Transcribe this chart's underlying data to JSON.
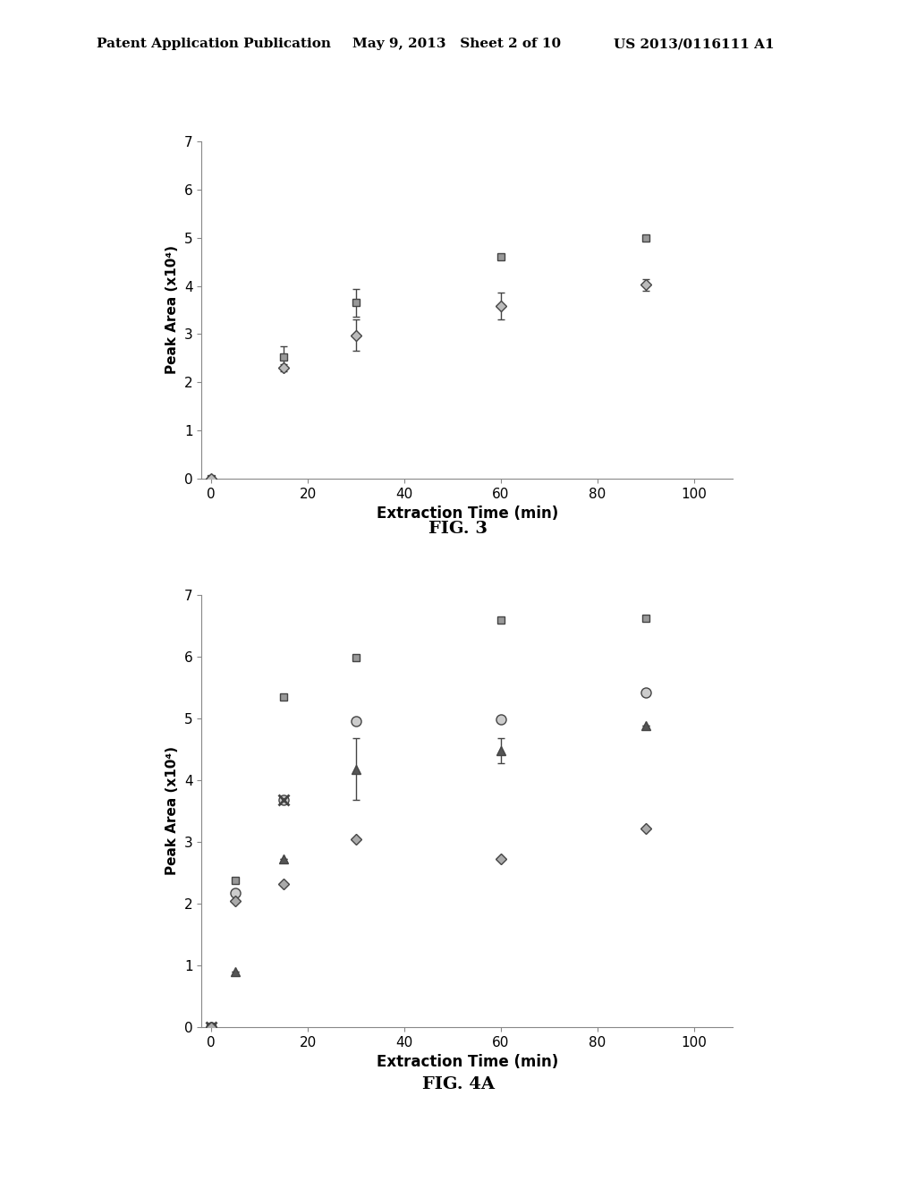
{
  "header_left": "Patent Application Publication",
  "header_mid": "May 9, 2013   Sheet 2 of 10",
  "header_right": "US 2013/0116111 A1",
  "fig3": {
    "title": "FIG. 3",
    "xlabel": "Extraction Time (min)",
    "ylabel": "Peak Area (x10⁴)",
    "xlim": [
      -2,
      108
    ],
    "ylim": [
      0,
      7
    ],
    "xticks": [
      0,
      20,
      40,
      60,
      80,
      100
    ],
    "yticks": [
      0,
      1,
      2,
      3,
      4,
      5,
      6,
      7
    ],
    "series_square": {
      "x": [
        0,
        15,
        30,
        60,
        90
      ],
      "y": [
        0.0,
        2.52,
        3.65,
        4.6,
        5.0
      ],
      "yerr": [
        0.0,
        0.22,
        0.28,
        0.0,
        0.0
      ]
    },
    "series_diamond": {
      "x": [
        0,
        15,
        30,
        60,
        90
      ],
      "y": [
        0.0,
        2.3,
        2.98,
        3.58,
        4.02
      ],
      "yerr": [
        0.0,
        0.08,
        0.32,
        0.28,
        0.12
      ]
    }
  },
  "fig4a": {
    "title": "FIG. 4A",
    "xlabel": "Extraction Time (min)",
    "ylabel": "Peak Area (x10⁴)",
    "xlim": [
      -2,
      108
    ],
    "ylim": [
      0,
      7
    ],
    "xticks": [
      0,
      20,
      40,
      60,
      80,
      100
    ],
    "yticks": [
      0,
      1,
      2,
      3,
      4,
      5,
      6,
      7
    ],
    "series_square": {
      "x": [
        0,
        5,
        15,
        30,
        60,
        90
      ],
      "y": [
        0.0,
        2.38,
        5.35,
        5.98,
        6.6,
        6.62
      ],
      "yerr": [
        0.0,
        0.0,
        0.0,
        0.0,
        0.0,
        0.0
      ]
    },
    "series_circle": {
      "x": [
        0,
        5,
        15,
        30,
        60,
        90
      ],
      "y": [
        0.0,
        2.18,
        3.68,
        4.95,
        4.98,
        5.42
      ],
      "yerr": [
        0.0,
        0.0,
        0.0,
        0.0,
        0.0,
        0.0
      ]
    },
    "series_x": {
      "x": [
        0,
        15
      ],
      "y": [
        0.0,
        3.68
      ],
      "yerr": [
        0.0,
        0.0
      ]
    },
    "series_triangle": {
      "x": [
        0,
        5,
        15,
        30,
        60,
        90
      ],
      "y": [
        0.0,
        0.9,
        2.73,
        4.18,
        4.48,
        4.88
      ],
      "yerr": [
        0.0,
        0.0,
        0.0,
        0.5,
        0.2,
        0.0
      ]
    },
    "series_diamond": {
      "x": [
        0,
        5,
        15,
        30,
        60,
        90
      ],
      "y": [
        0.0,
        2.05,
        2.32,
        3.05,
        2.72,
        3.22
      ],
      "yerr": [
        0.0,
        0.0,
        0.0,
        0.0,
        0.0,
        0.0
      ]
    }
  },
  "background_color": "#ffffff",
  "marker_color": "#444444",
  "text_color": "#000000",
  "header_fontsize": 11,
  "axis_label_fontsize": 12,
  "tick_fontsize": 11,
  "caption_fontsize": 14
}
